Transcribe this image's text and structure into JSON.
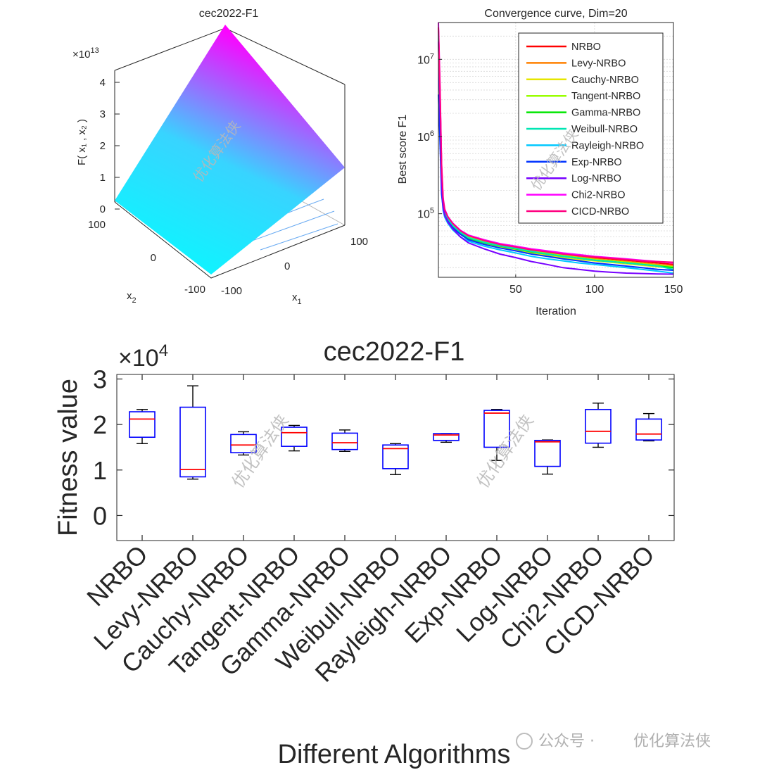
{
  "watermark": "优化算法侠",
  "gzh": {
    "prefix": "公众号 ·",
    "name": "优化算法侠"
  },
  "chart_data": [
    {
      "type": "surface",
      "title": "cec2022-F1",
      "zlabel": "F( x₁ , x₂ )",
      "xlabel": "x₁",
      "ylabel": "x₂",
      "z_multiplier": "×10",
      "z_exponent": "13",
      "zticks": [
        "0",
        "1",
        "2",
        "3",
        "4"
      ],
      "xticks": [
        "-100",
        "0",
        "100"
      ],
      "yticks": [
        "-100",
        "0",
        "100"
      ],
      "colormap": [
        "#00ffff",
        "#ff00ff"
      ]
    },
    {
      "type": "line",
      "title": "Convergence curve, Dim=20",
      "xlabel": "Iteration",
      "ylabel": "Best score F1",
      "xlim": [
        1,
        150
      ],
      "ylim": [
        15000,
        30000000
      ],
      "yscale": "log",
      "xticks": [
        "50",
        "100",
        "150"
      ],
      "xtick_values": [
        50,
        100,
        150
      ],
      "yticks": [
        {
          "base": "10",
          "exp": "5",
          "value": 100000
        },
        {
          "base": "10",
          "exp": "6",
          "value": 1000000
        },
        {
          "base": "10",
          "exp": "7",
          "value": 10000000
        }
      ],
      "x": [
        1,
        2,
        3,
        4,
        5,
        7,
        10,
        15,
        20,
        30,
        40,
        50,
        60,
        70,
        80,
        90,
        100,
        110,
        120,
        130,
        140,
        150
      ],
      "series": [
        {
          "name": "NRBO",
          "color": "#ff0000",
          "values": [
            25000000,
            4000000,
            400000,
            150000,
            110000,
            90000,
            75000,
            60000,
            52000,
            45000,
            40000,
            37000,
            34000,
            32000,
            30000,
            28500,
            27000,
            26000,
            25000,
            24000,
            23000,
            22000
          ]
        },
        {
          "name": "Levy-NRBO",
          "color": "#ff8000",
          "values": [
            20000000,
            3000000,
            350000,
            140000,
            105000,
            85000,
            70000,
            56000,
            48000,
            42000,
            38000,
            35000,
            33000,
            31000,
            29000,
            27500,
            26000,
            25000,
            24000,
            23000,
            22000,
            21000
          ]
        },
        {
          "name": "Cauchy-NRBO",
          "color": "#e6e600",
          "values": [
            18000000,
            2500000,
            300000,
            130000,
            100000,
            82000,
            68000,
            55000,
            47000,
            41000,
            37000,
            34000,
            31000,
            29000,
            27000,
            25500,
            24500,
            23500,
            22500,
            21500,
            20500,
            20000
          ]
        },
        {
          "name": "Tangent-NRBO",
          "color": "#99ff00",
          "values": [
            22000000,
            3500000,
            380000,
            145000,
            108000,
            88000,
            72000,
            58000,
            50000,
            43000,
            39000,
            36000,
            33000,
            31000,
            29000,
            27000,
            25500,
            24500,
            23500,
            22500,
            21500,
            20500
          ]
        },
        {
          "name": "Gamma-NRBO",
          "color": "#00e600",
          "values": [
            19000000,
            2800000,
            320000,
            135000,
            102000,
            84000,
            69000,
            56000,
            48000,
            42000,
            38000,
            35000,
            32000,
            30000,
            28000,
            26500,
            25000,
            24000,
            23000,
            22000,
            21000,
            20000
          ]
        },
        {
          "name": "Weibull-NRBO",
          "color": "#00e6b3",
          "values": [
            21000000,
            3200000,
            360000,
            138000,
            104000,
            85000,
            70000,
            57000,
            49000,
            42500,
            38500,
            35500,
            32500,
            30000,
            28000,
            26500,
            25000,
            24000,
            23000,
            22000,
            21000,
            19000
          ]
        },
        {
          "name": "Rayleigh-NRBO",
          "color": "#00c8ff",
          "values": [
            24000000,
            3800000,
            200000,
            110000,
            90000,
            75000,
            62000,
            50000,
            44000,
            38000,
            34000,
            31000,
            28000,
            26000,
            24500,
            23000,
            22000,
            21000,
            20000,
            19000,
            18000,
            17000
          ]
        },
        {
          "name": "Exp-NRBO",
          "color": "#0033ff",
          "values": [
            3500000,
            900000,
            180000,
            120000,
            95000,
            80000,
            66000,
            54000,
            46000,
            40000,
            36000,
            33000,
            30000,
            28000,
            26000,
            24500,
            23000,
            22000,
            21000,
            20000,
            19000,
            18500
          ]
        },
        {
          "name": "Log-NRBO",
          "color": "#7700ff",
          "values": [
            17000000,
            2500000,
            250000,
            120000,
            95000,
            78000,
            64000,
            50000,
            42000,
            35000,
            30000,
            27000,
            24000,
            22000,
            20000,
            19000,
            18000,
            17500,
            17000,
            16800,
            16600,
            16500
          ]
        },
        {
          "name": "Chi2-NRBO",
          "color": "#ff00ff",
          "values": [
            30000000,
            5000000,
            450000,
            160000,
            115000,
            92000,
            76000,
            61000,
            53000,
            46000,
            41000,
            38000,
            35000,
            33000,
            31000,
            29500,
            28000,
            27000,
            26000,
            25000,
            24000,
            23000
          ]
        },
        {
          "name": "CICD-NRBO",
          "color": "#ff0080",
          "values": [
            26000000,
            4200000,
            420000,
            155000,
            112000,
            91000,
            75000,
            60000,
            52000,
            45000,
            40000,
            37000,
            34000,
            32000,
            30000,
            28500,
            27500,
            26500,
            25500,
            24500,
            24000,
            23500
          ]
        }
      ]
    },
    {
      "type": "boxplot",
      "title": "cec2022-F1",
      "xlabel": "Different Algorithms",
      "ylabel": "Fitness value",
      "multiplier": "×10",
      "exponent": "4",
      "ylim": [
        -0.55,
        3.1
      ],
      "yticks": [
        0,
        1,
        2,
        3
      ],
      "ytick_labels": [
        "0",
        "1",
        "2",
        "3"
      ],
      "categories": [
        "NRBO",
        "Levy-NRBO",
        "Cauchy-NRBO",
        "Tangent-NRBO",
        "Gamma-NRBO",
        "Weibull-NRBO",
        "Rayleigh-NRBO",
        "Exp-NRBO",
        "Log-NRBO",
        "Chi2-NRBO",
        "CICD-NRBO"
      ],
      "box_color": "#0000ff",
      "median_color": "#ff0000",
      "boxes": [
        {
          "min": 1.58,
          "q1": 1.72,
          "median": 2.12,
          "q3": 2.28,
          "max": 2.33
        },
        {
          "min": 0.8,
          "q1": 0.85,
          "median": 1.01,
          "q3": 2.38,
          "max": 2.85
        },
        {
          "min": 1.33,
          "q1": 1.38,
          "median": 1.55,
          "q3": 1.78,
          "max": 1.84
        },
        {
          "min": 1.42,
          "q1": 1.52,
          "median": 1.82,
          "q3": 1.94,
          "max": 1.98
        },
        {
          "min": 1.41,
          "q1": 1.45,
          "median": 1.6,
          "q3": 1.81,
          "max": 1.88
        },
        {
          "min": 0.9,
          "q1": 1.03,
          "median": 1.47,
          "q3": 1.55,
          "max": 1.58
        },
        {
          "min": 1.61,
          "q1": 1.65,
          "median": 1.77,
          "q3": 1.8,
          "max": 1.8
        },
        {
          "min": 1.21,
          "q1": 1.5,
          "median": 2.25,
          "q3": 2.31,
          "max": 2.33
        },
        {
          "min": 0.91,
          "q1": 1.08,
          "median": 1.62,
          "q3": 1.65,
          "max": 1.66
        },
        {
          "min": 1.5,
          "q1": 1.59,
          "median": 1.85,
          "q3": 2.33,
          "max": 2.47
        },
        {
          "min": 1.64,
          "q1": 1.66,
          "median": 1.79,
          "q3": 2.12,
          "max": 2.24
        }
      ]
    }
  ]
}
